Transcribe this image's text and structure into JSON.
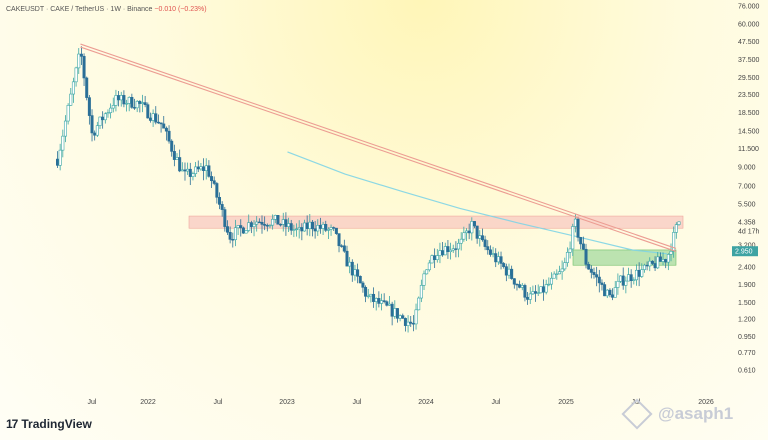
{
  "header": {
    "symbol": "CAKEUSDT",
    "pair": "CAKE / TetherUS",
    "interval": "1W",
    "exchange": "Binance",
    "change": "−0.010 (−0.23%)"
  },
  "brand": {
    "name": "TradingView",
    "logo": "17"
  },
  "watermark": {
    "text": "@asaph1"
  },
  "colors": {
    "up": "#39a6a6",
    "down": "#2a6f97",
    "ma": "#7fd4e6",
    "trendline": "#ec9d93",
    "resistance_zone": "#f8c9c2",
    "support_zone": "#9fd89b",
    "price_badge": "#3ea3a3",
    "countdown_badge": "#2962ff"
  },
  "chart_data": {
    "type": "candlestick",
    "title": "",
    "scale": "log",
    "ylim": [
      0.55,
      77
    ],
    "x_ticks": [
      "Jul",
      "2022",
      "Jul",
      "2023",
      "Jul",
      "2024",
      "Jul",
      "2025",
      "Jul",
      "2026"
    ],
    "y_ticks": [
      "76.000",
      "60.000",
      "47.500",
      "37.500",
      "29.500",
      "23.500",
      "18.500",
      "14.500",
      "11.500",
      "9.000",
      "7.000",
      "5.500",
      "4.358",
      "4d 17h",
      "3.200",
      "2.400",
      "1.900",
      "1.500",
      "1.200",
      "0.950",
      "0.770",
      "0.610"
    ],
    "y_tick_values": [
      76,
      60,
      47.5,
      37.5,
      29.5,
      23.5,
      18.5,
      14.5,
      11.5,
      9.0,
      7.0,
      5.5,
      4.358,
      null,
      3.2,
      2.4,
      1.9,
      1.5,
      1.2,
      0.95,
      0.77,
      0.61
    ],
    "current_price": "4.358",
    "countdown": "4d 17h",
    "support_badge": "2.950",
    "time_range": [
      "2021-03",
      "2025-09"
    ],
    "closes_anchors": [
      [
        "2021-03",
        10
      ],
      [
        "2021-05",
        42
      ],
      [
        "2021-06",
        14
      ],
      [
        "2021-08",
        22
      ],
      [
        "2021-10",
        21
      ],
      [
        "2021-12",
        16
      ],
      [
        "2022-02",
        8
      ],
      [
        "2022-04",
        9
      ],
      [
        "2022-06",
        3.6
      ],
      [
        "2022-08",
        4.4
      ],
      [
        "2022-10",
        4.4
      ],
      [
        "2022-12",
        3.8
      ],
      [
        "2023-01",
        4.2
      ],
      [
        "2023-03",
        3.8
      ],
      [
        "2023-04",
        2.7
      ],
      [
        "2023-06",
        1.6
      ],
      [
        "2023-08",
        1.35
      ],
      [
        "2023-10",
        1.1
      ],
      [
        "2023-11",
        2.4
      ],
      [
        "2023-12",
        3.0
      ],
      [
        "2024-02",
        3.2
      ],
      [
        "2024-03",
        4.2
      ],
      [
        "2024-04",
        3.2
      ],
      [
        "2024-06",
        2.3
      ],
      [
        "2024-08",
        1.6
      ],
      [
        "2024-09",
        1.7
      ],
      [
        "2024-11",
        2.3
      ],
      [
        "2024-12",
        4.3
      ],
      [
        "2025-01",
        2.5
      ],
      [
        "2025-03",
        1.6
      ],
      [
        "2025-04",
        2.0
      ],
      [
        "2025-06",
        2.3
      ],
      [
        "2025-07",
        2.5
      ],
      [
        "2025-08",
        2.7
      ],
      [
        "2025-09",
        4.358
      ]
    ],
    "moving_average": [
      [
        "2022-11",
        11.0
      ],
      [
        "2023-04",
        8.2
      ],
      [
        "2023-09",
        6.5
      ],
      [
        "2024-02",
        5.2
      ],
      [
        "2024-07",
        4.3
      ],
      [
        "2024-12",
        3.6
      ],
      [
        "2025-05",
        3.0
      ],
      [
        "2025-08",
        2.85
      ]
    ],
    "trendline": [
      [
        "2021-05",
        45
      ],
      [
        "2025-08",
        3.0
      ]
    ],
    "resistance_zone": [
      4.0,
      4.7
    ],
    "support_zone": [
      2.45,
      3.0
    ],
    "support_zone_start": "2024-12"
  }
}
